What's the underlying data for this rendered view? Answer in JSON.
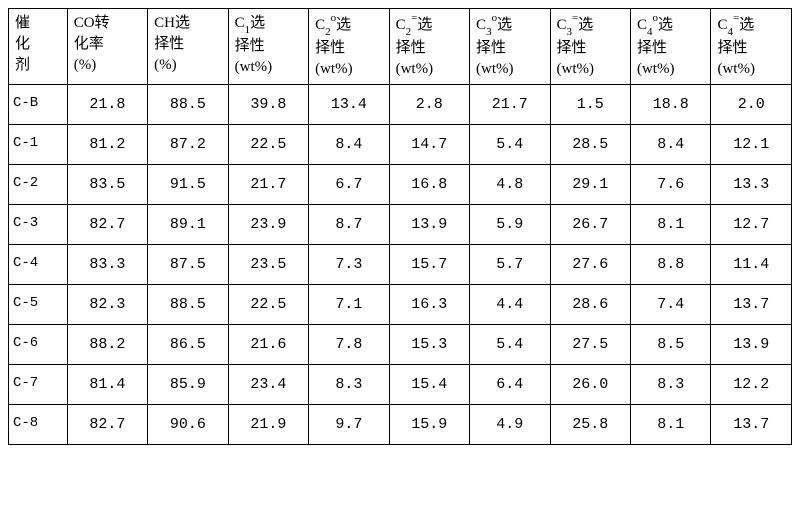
{
  "table": {
    "columns": [
      {
        "line1": "催",
        "line2": "化",
        "line3": "剂"
      },
      {
        "line1": "CO转",
        "line2": "化率",
        "line3": "(%)"
      },
      {
        "line1": "CH选",
        "line2": "择性",
        "line3": "(%)"
      },
      {
        "line1_pre": "C",
        "line1_sub": "1",
        "line1_post": "选",
        "line2": "择性",
        "line3": "(wt%)"
      },
      {
        "line1_pre": "C",
        "line1_sub": "2",
        "line1_sup": "o",
        "line1_post": "选",
        "line2": "择性",
        "line3": "(wt%)"
      },
      {
        "line1_pre": "C",
        "line1_sub": "2",
        "line1_sup": "=",
        "line1_post": "选",
        "line2": "择性",
        "line3": "(wt%)"
      },
      {
        "line1_pre": "C",
        "line1_sub": "3",
        "line1_sup": "o",
        "line1_post": "选",
        "line2": "择性",
        "line3": "(wt%)"
      },
      {
        "line1_pre": "C",
        "line1_sub": "3",
        "line1_sup": "=",
        "line1_post": "选",
        "line2": "择性",
        "line3": "(wt%)"
      },
      {
        "line1_pre": "C",
        "line1_sub": "4",
        "line1_sup": "o",
        "line1_post": "选",
        "line2": "择性",
        "line3": "(wt%)"
      },
      {
        "line1_pre": "C",
        "line1_sub": "4",
        "line1_sup": "=",
        "line1_post": "选",
        "line2": "择性",
        "line3": "(wt%)"
      }
    ],
    "rows": [
      [
        "C-B",
        "21.8",
        "88.5",
        "39.8",
        "13.4",
        "2.8",
        "21.7",
        "1.5",
        "18.8",
        "2.0"
      ],
      [
        "C-1",
        "81.2",
        "87.2",
        "22.5",
        "8.4",
        "14.7",
        "5.4",
        "28.5",
        "8.4",
        "12.1"
      ],
      [
        "C-2",
        "83.5",
        "91.5",
        "21.7",
        "6.7",
        "16.8",
        "4.8",
        "29.1",
        "7.6",
        "13.3"
      ],
      [
        "C-3",
        "82.7",
        "89.1",
        "23.9",
        "8.7",
        "13.9",
        "5.9",
        "26.7",
        "8.1",
        "12.7"
      ],
      [
        "C-4",
        "83.3",
        "87.5",
        "23.5",
        "7.3",
        "15.7",
        "5.7",
        "27.6",
        "8.8",
        "11.4"
      ],
      [
        "C-5",
        "82.3",
        "88.5",
        "22.5",
        "7.1",
        "16.3",
        "4.4",
        "28.6",
        "7.4",
        "13.7"
      ],
      [
        "C-6",
        "88.2",
        "86.5",
        "21.6",
        "7.8",
        "15.3",
        "5.4",
        "27.5",
        "8.5",
        "13.9"
      ],
      [
        "C-7",
        "81.4",
        "85.9",
        "23.4",
        "8.3",
        "15.4",
        "6.4",
        "26.0",
        "8.3",
        "12.2"
      ],
      [
        "C-8",
        "82.7",
        "90.6",
        "21.9",
        "9.7",
        "15.9",
        "4.9",
        "25.8",
        "8.1",
        "13.7"
      ]
    ]
  }
}
